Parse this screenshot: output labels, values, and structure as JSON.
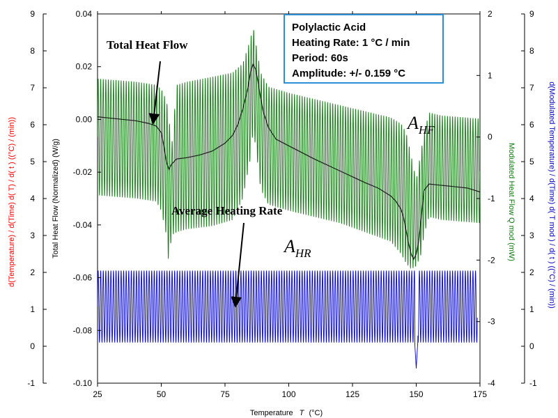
{
  "info_box": {
    "line1": "Polylactic Acid",
    "line2": "Heating Rate: 1 °C / min",
    "line3": "Period: 60s",
    "line4": "Amplitude: +/- 0.159 °C"
  },
  "annotations": {
    "total_heat_flow": "Total Heat Flow",
    "average_heating_rate": "Average Heating Rate",
    "a_hf_main": "A",
    "a_hf_sub": "HF",
    "a_hr_main": "A",
    "a_hr_sub": "HR"
  },
  "colors": {
    "total_heat_flow": "#1a1a1a",
    "modulated_heat_flow": "#0f7a0f",
    "modulated_temperature_derivative": "#0000cc",
    "temperature_derivative_axis": "#ff0000",
    "info_box_border": "#2a8fd4"
  },
  "chart_data": {
    "type": "line",
    "x_axis": {
      "label_main": "Temperature",
      "label_symbol": "T",
      "label_unit": "(°C)",
      "range": [
        25,
        175
      ],
      "ticks": [
        "25",
        "50",
        "75",
        "100",
        "125",
        "150",
        "175"
      ]
    },
    "y_axes": {
      "left_outer": {
        "label": "d(Temperature) / d(Time) d(  T) / d( t )  ((°C) / (min))",
        "range": [
          -1,
          9
        ],
        "ticks": [
          "-1",
          "0",
          "1",
          "2",
          "3",
          "4",
          "5",
          "6",
          "7",
          "8",
          "9"
        ],
        "color": "#ff0000"
      },
      "left_inner": {
        "label": "Total Heat Flow (Normalized)  (W/g)",
        "range": [
          -0.1,
          0.04
        ],
        "ticks": [
          "-0.10",
          "-0.08",
          "-0.06",
          "-0.04",
          "-0.02",
          "0.00",
          "0.02",
          "0.04"
        ]
      },
      "right_inner": {
        "label": "Modulated Heat Flow  Q mod  (mW)",
        "range": [
          -4,
          2
        ],
        "ticks": [
          "-4",
          "-3",
          "-2",
          "-1",
          "0",
          "1",
          "2"
        ],
        "color": "#0f7a0f"
      },
      "right_outer": {
        "label": "d(Modulated Temperature) / d(Time) d(  T mod ) / d( t )  ((°C) / (min))",
        "range": [
          -1,
          9
        ],
        "ticks": [
          "-1",
          "0",
          "1",
          "2",
          "3",
          "4",
          "5",
          "6",
          "7",
          "8",
          "9"
        ],
        "color": "#0000cc"
      }
    },
    "series": [
      {
        "name": "Total Heat Flow",
        "axis": "left_inner",
        "x": [
          25,
          30,
          35,
          40,
          45,
          48,
          50,
          51,
          52,
          53,
          54,
          56,
          60,
          65,
          70,
          75,
          78,
          80,
          82,
          84,
          85,
          86,
          87,
          88,
          89,
          90,
          92,
          95,
          100,
          110,
          120,
          130,
          135,
          140,
          142,
          144,
          145,
          146,
          147,
          148,
          149,
          150,
          151,
          152,
          153,
          155,
          160,
          165,
          170,
          175
        ],
        "values": [
          0.001,
          0.0005,
          0.0,
          -0.0005,
          -0.0015,
          -0.0025,
          -0.005,
          -0.01,
          -0.016,
          -0.019,
          -0.017,
          -0.015,
          -0.0145,
          -0.0135,
          -0.012,
          -0.009,
          -0.006,
          -0.002,
          0.004,
          0.012,
          0.018,
          0.021,
          0.019,
          0.014,
          0.008,
          0.003,
          -0.003,
          -0.0075,
          -0.01,
          -0.015,
          -0.0195,
          -0.024,
          -0.026,
          -0.029,
          -0.031,
          -0.034,
          -0.037,
          -0.042,
          -0.047,
          -0.051,
          -0.053,
          -0.051,
          -0.046,
          -0.037,
          -0.027,
          -0.0245,
          -0.025,
          -0.0255,
          -0.026,
          -0.0275
        ]
      },
      {
        "name": "Modulated Heat Flow",
        "axis": "right_inner",
        "period": 1.0,
        "x": [
          25,
          40,
          48,
          50,
          52,
          53,
          54,
          56,
          60,
          70,
          78,
          82,
          85,
          86,
          87,
          89,
          92,
          100,
          120,
          140,
          144,
          146,
          148,
          150,
          152,
          153,
          155,
          160,
          175
        ],
        "upper": [
          0.95,
          0.9,
          0.85,
          0.78,
          0.6,
          0.35,
          -0.2,
          0.85,
          0.9,
          0.98,
          1.05,
          1.2,
          1.6,
          1.8,
          1.55,
          1.05,
          0.82,
          0.72,
          0.52,
          0.32,
          0.22,
          0.08,
          -0.3,
          -0.7,
          -0.2,
          0.05,
          0.4,
          0.35,
          0.3
        ],
        "lower": [
          -0.95,
          -1.0,
          -1.05,
          -1.2,
          -1.6,
          -2.1,
          -1.6,
          -1.55,
          -1.5,
          -1.45,
          -1.35,
          -1.0,
          -0.35,
          0.1,
          -0.15,
          -0.85,
          -1.1,
          -1.2,
          -1.4,
          -1.7,
          -1.9,
          -2.05,
          -2.15,
          -2.1,
          -1.9,
          -1.6,
          -1.3,
          -1.35,
          -1.4
        ]
      },
      {
        "name": "Modulated Temperature Derivative",
        "axis": "right_outer",
        "period": 1.0,
        "upper": 2.05,
        "lower": 0.1,
        "x_start": 25,
        "x_end": 174,
        "dip": {
          "x": 150,
          "value": -0.6
        }
      }
    ]
  }
}
